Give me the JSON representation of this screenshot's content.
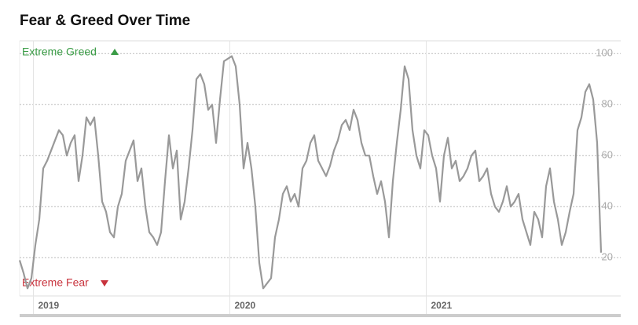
{
  "chart_data": {
    "type": "line",
    "title": "Fear & Greed Over Time",
    "annotations": [
      "Extreme Greed",
      "Extreme Fear"
    ],
    "color": "#999999",
    "grid": true,
    "xlim": [
      2018.93,
      2021.99
    ],
    "xticks": [
      2019,
      2020,
      2021
    ],
    "ylim": [
      5,
      105
    ],
    "yticks": [
      20,
      40,
      60,
      80,
      100
    ],
    "x": [
      2018.93,
      2018.95,
      2018.97,
      2018.99,
      2019.01,
      2019.03,
      2019.05,
      2019.07,
      2019.09,
      2019.11,
      2019.13,
      2019.15,
      2019.17,
      2019.19,
      2019.21,
      2019.23,
      2019.25,
      2019.27,
      2019.29,
      2019.31,
      2019.33,
      2019.35,
      2019.37,
      2019.39,
      2019.41,
      2019.43,
      2019.45,
      2019.47,
      2019.49,
      2019.51,
      2019.53,
      2019.55,
      2019.57,
      2019.59,
      2019.61,
      2019.63,
      2019.65,
      2019.67,
      2019.69,
      2019.71,
      2019.73,
      2019.75,
      2019.77,
      2019.79,
      2019.81,
      2019.83,
      2019.85,
      2019.87,
      2019.89,
      2019.91,
      2019.93,
      2019.95,
      2019.97,
      2019.99,
      2020.01,
      2020.03,
      2020.05,
      2020.07,
      2020.09,
      2020.11,
      2020.13,
      2020.15,
      2020.17,
      2020.19,
      2020.21,
      2020.23,
      2020.25,
      2020.27,
      2020.29,
      2020.31,
      2020.33,
      2020.35,
      2020.37,
      2020.39,
      2020.41,
      2020.43,
      2020.45,
      2020.47,
      2020.49,
      2020.51,
      2020.53,
      2020.55,
      2020.57,
      2020.59,
      2020.61,
      2020.63,
      2020.65,
      2020.67,
      2020.69,
      2020.71,
      2020.73,
      2020.75,
      2020.77,
      2020.79,
      2020.81,
      2020.83,
      2020.85,
      2020.87,
      2020.89,
      2020.91,
      2020.93,
      2020.95,
      2020.97,
      2020.99,
      2021.01,
      2021.03,
      2021.05,
      2021.07,
      2021.09,
      2021.11,
      2021.13,
      2021.15,
      2021.17,
      2021.19,
      2021.21,
      2021.23,
      2021.25,
      2021.27,
      2021.29,
      2021.31,
      2021.33,
      2021.35,
      2021.37,
      2021.39,
      2021.41,
      2021.43,
      2021.45,
      2021.47,
      2021.49,
      2021.51,
      2021.53,
      2021.55,
      2021.57,
      2021.59,
      2021.61,
      2021.63,
      2021.65,
      2021.67,
      2021.69,
      2021.71,
      2021.73,
      2021.75,
      2021.77,
      2021.79,
      2021.81,
      2021.83,
      2021.85,
      2021.87,
      2021.89
    ],
    "values": [
      19,
      14,
      8,
      12,
      25,
      35,
      55,
      58,
      62,
      66,
      70,
      68,
      60,
      65,
      68,
      50,
      60,
      75,
      72,
      75,
      60,
      42,
      38,
      30,
      28,
      40,
      45,
      58,
      62,
      66,
      50,
      55,
      40,
      30,
      28,
      25,
      30,
      50,
      68,
      55,
      62,
      35,
      42,
      55,
      70,
      90,
      92,
      88,
      78,
      80,
      65,
      82,
      97,
      98,
      99,
      95,
      80,
      55,
      65,
      55,
      40,
      18,
      8,
      10,
      12,
      28,
      35,
      45,
      48,
      42,
      45,
      40,
      55,
      58,
      65,
      68,
      58,
      55,
      52,
      56,
      62,
      66,
      72,
      74,
      70,
      78,
      74,
      65,
      60,
      60,
      52,
      45,
      50,
      42,
      28,
      50,
      65,
      78,
      95,
      90,
      70,
      60,
      55,
      70,
      68,
      60,
      55,
      42,
      60,
      67,
      55,
      58,
      50,
      52,
      55,
      60,
      62,
      50,
      52,
      55,
      45,
      40,
      38,
      42,
      48,
      40,
      42,
      45,
      35,
      30,
      25,
      38,
      35,
      28,
      48,
      55,
      42,
      35,
      25,
      30,
      38,
      45,
      70,
      75,
      85,
      88,
      82,
      65,
      22
    ]
  }
}
